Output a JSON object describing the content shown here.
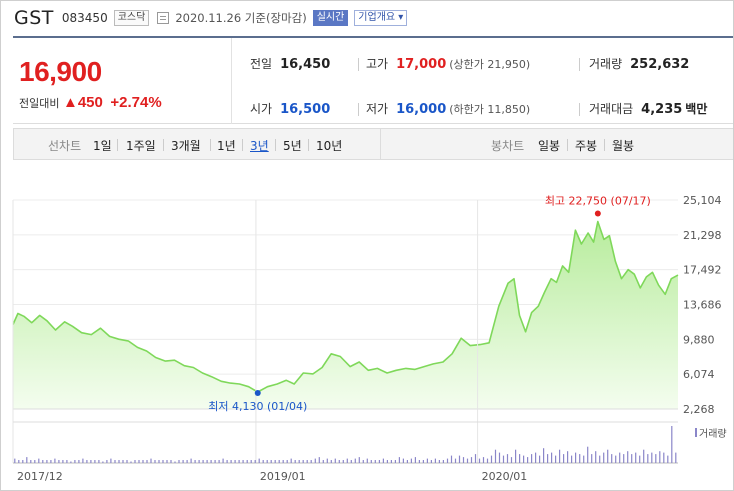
{
  "header": {
    "name": "GST",
    "code": "083450",
    "market": "코스닥",
    "date": "2020.11.26 기준(장마감)",
    "realtime_label": "실시간",
    "company_info_label": "기업개요 ▾"
  },
  "price": {
    "current": "16,900",
    "change_label": "전일대비",
    "change_amount": "▲450",
    "change_percent": "+2.74%"
  },
  "stats": {
    "prev_close": {
      "label": "전일",
      "value": "16,450"
    },
    "high": {
      "label": "고가",
      "value": "17,000",
      "sub": "(상한가 21,950)"
    },
    "volume": {
      "label": "거래량",
      "value": "252,632"
    },
    "open": {
      "label": "시가",
      "value": "16,500"
    },
    "low": {
      "label": "저가",
      "value": "16,000",
      "sub": "(하한가 11,850)"
    },
    "amount": {
      "label": "거래대금",
      "value": "4,235",
      "unit": "백만"
    }
  },
  "tabs": {
    "line_chart_label": "선차트",
    "periods": [
      "1일",
      "1주일",
      "3개월",
      "1년",
      "3년",
      "5년",
      "10년"
    ],
    "selected": "3년",
    "candle_chart_label": "봉차트",
    "candles": [
      "일봉",
      "주봉",
      "월봉"
    ]
  },
  "colors": {
    "up": "#e02020",
    "down": "#1a56c8",
    "line": "#7fd85a",
    "fill_top": "#b7ec9c",
    "fill_bottom": "#f4fdef",
    "volume_bar": "#8a86c9"
  },
  "chart_data": {
    "type": "area",
    "y_ticks": [
      "25,104",
      "21,298",
      "17,492",
      "13,686",
      "9,880",
      "6,074",
      "2,268"
    ],
    "ylim": [
      2268,
      25104
    ],
    "x_tick_labels": [
      "2017/12",
      "2019/01",
      "2020/01"
    ],
    "x_tick_dates": [
      "2017-12-01",
      "2019-01-01",
      "2020-01-01"
    ],
    "xlim": [
      "2017-11-27",
      "2020-11-26"
    ],
    "max_annotation": {
      "label": "최고 22,750 (07/17)",
      "date": "2020-07-17",
      "value": 22750
    },
    "min_annotation": {
      "label": "최저 4,130 (01/04)",
      "date": "2019-01-04",
      "value": 4130
    },
    "volume_label": "거래량",
    "series": [
      {
        "values": [
          [
            "2017-11-27",
            11500
          ],
          [
            "2017-12-05",
            12700
          ],
          [
            "2017-12-15",
            12400
          ],
          [
            "2017-12-28",
            11700
          ],
          [
            "2018-01-10",
            12500
          ],
          [
            "2018-01-22",
            11900
          ],
          [
            "2018-02-05",
            10900
          ],
          [
            "2018-02-20",
            11800
          ],
          [
            "2018-03-05",
            11300
          ],
          [
            "2018-03-20",
            10600
          ],
          [
            "2018-04-05",
            10400
          ],
          [
            "2018-04-20",
            11100
          ],
          [
            "2018-05-05",
            10200
          ],
          [
            "2018-05-20",
            9900
          ],
          [
            "2018-06-05",
            9700
          ],
          [
            "2018-06-20",
            9000
          ],
          [
            "2018-07-05",
            8600
          ],
          [
            "2018-07-20",
            7900
          ],
          [
            "2018-08-05",
            7500
          ],
          [
            "2018-08-20",
            7600
          ],
          [
            "2018-09-05",
            7000
          ],
          [
            "2018-09-20",
            6800
          ],
          [
            "2018-10-05",
            6200
          ],
          [
            "2018-10-20",
            5800
          ],
          [
            "2018-11-05",
            5300
          ],
          [
            "2018-11-20",
            5100
          ],
          [
            "2018-12-05",
            5000
          ],
          [
            "2018-12-20",
            4700
          ],
          [
            "2019-01-04",
            4130
          ],
          [
            "2019-01-20",
            4700
          ],
          [
            "2019-02-05",
            5000
          ],
          [
            "2019-02-20",
            5400
          ],
          [
            "2019-03-05",
            5000
          ],
          [
            "2019-03-20",
            6200
          ],
          [
            "2019-04-05",
            6100
          ],
          [
            "2019-04-20",
            6800
          ],
          [
            "2019-05-05",
            8300
          ],
          [
            "2019-05-20",
            8000
          ],
          [
            "2019-06-05",
            6900
          ],
          [
            "2019-06-20",
            7400
          ],
          [
            "2019-07-05",
            6500
          ],
          [
            "2019-07-20",
            6700
          ],
          [
            "2019-08-05",
            6200
          ],
          [
            "2019-08-20",
            6500
          ],
          [
            "2019-09-05",
            6700
          ],
          [
            "2019-09-20",
            6600
          ],
          [
            "2019-10-05",
            6900
          ],
          [
            "2019-10-20",
            7200
          ],
          [
            "2019-11-05",
            7400
          ],
          [
            "2019-11-20",
            8300
          ],
          [
            "2019-12-05",
            10000
          ],
          [
            "2019-12-20",
            9200
          ],
          [
            "2020-01-05",
            9300
          ],
          [
            "2020-01-20",
            9500
          ],
          [
            "2020-02-05",
            13500
          ],
          [
            "2020-02-20",
            16000
          ],
          [
            "2020-03-01",
            16500
          ],
          [
            "2020-03-10",
            12500
          ],
          [
            "2020-03-20",
            10700
          ],
          [
            "2020-03-30",
            12800
          ],
          [
            "2020-04-10",
            13500
          ],
          [
            "2020-04-20",
            15000
          ],
          [
            "2020-05-01",
            16500
          ],
          [
            "2020-05-10",
            16100
          ],
          [
            "2020-05-20",
            17900
          ],
          [
            "2020-05-30",
            17200
          ],
          [
            "2020-06-10",
            21800
          ],
          [
            "2020-06-20",
            20300
          ],
          [
            "2020-07-01",
            21500
          ],
          [
            "2020-07-10",
            20500
          ],
          [
            "2020-07-17",
            22750
          ],
          [
            "2020-07-27",
            20800
          ],
          [
            "2020-08-05",
            21200
          ],
          [
            "2020-08-15",
            18400
          ],
          [
            "2020-08-25",
            16500
          ],
          [
            "2020-09-05",
            17500
          ],
          [
            "2020-09-15",
            17000
          ],
          [
            "2020-09-25",
            15500
          ],
          [
            "2020-10-05",
            16700
          ],
          [
            "2020-10-15",
            17200
          ],
          [
            "2020-10-25",
            15800
          ],
          [
            "2020-11-05",
            14800
          ],
          [
            "2020-11-15",
            16500
          ],
          [
            "2020-11-26",
            16900
          ]
        ]
      }
    ],
    "volume": [
      3,
      2,
      2,
      4,
      2,
      2,
      3,
      2,
      2,
      2,
      3,
      2,
      2,
      2,
      1,
      2,
      2,
      3,
      2,
      2,
      2,
      2,
      1,
      2,
      3,
      2,
      2,
      2,
      2,
      1,
      2,
      2,
      2,
      2,
      3,
      2,
      2,
      2,
      2,
      2,
      1,
      2,
      2,
      2,
      3,
      2,
      2,
      2,
      2,
      2,
      2,
      2,
      3,
      2,
      2,
      2,
      2,
      2,
      2,
      2,
      2,
      3,
      2,
      2,
      2,
      2,
      2,
      2,
      2,
      3,
      2,
      2,
      2,
      2,
      2,
      3,
      4,
      2,
      3,
      2,
      3,
      2,
      2,
      3,
      2,
      3,
      4,
      2,
      3,
      2,
      2,
      2,
      3,
      2,
      2,
      2,
      4,
      3,
      2,
      3,
      4,
      2,
      2,
      3,
      2,
      3,
      2,
      2,
      3,
      5,
      3,
      5,
      4,
      3,
      4,
      6,
      3,
      4,
      3,
      5,
      9,
      7,
      5,
      6,
      4,
      9,
      6,
      5,
      4,
      6,
      7,
      5,
      10,
      6,
      7,
      5,
      9,
      6,
      8,
      5,
      7,
      6,
      5,
      11,
      6,
      8,
      5,
      7,
      9,
      6,
      5,
      7,
      6,
      8,
      6,
      7,
      5,
      9,
      6,
      7,
      6,
      8,
      7,
      5,
      25,
      7
    ]
  }
}
